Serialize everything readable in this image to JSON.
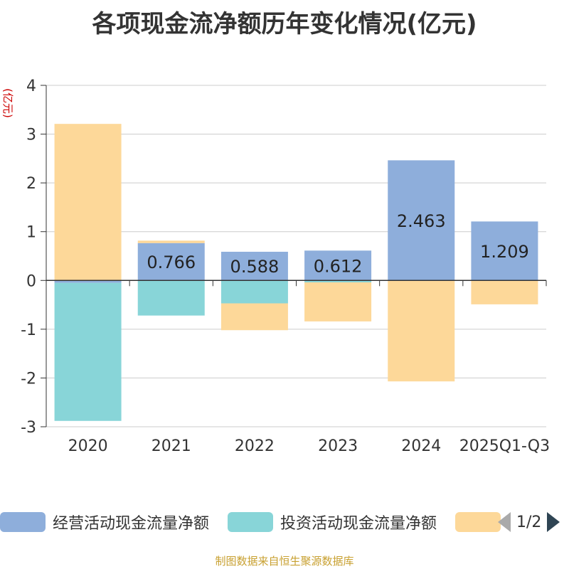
{
  "chart_data": {
    "type": "bar",
    "title": "各项现金流净额历年变化情况(亿元)",
    "ylabel": "(亿元)",
    "ylim": [
      -3,
      4
    ],
    "yticks": [
      -3,
      -2,
      -1,
      0,
      1,
      2,
      3,
      4
    ],
    "categories": [
      "2020",
      "2021",
      "2022",
      "2023",
      "2024",
      "2025Q1-Q3"
    ],
    "series": [
      {
        "name": "经营活动现金流量净额",
        "color": "#8eaedb",
        "values": [
          -0.05,
          0.766,
          0.588,
          0.612,
          2.463,
          1.209
        ],
        "labels": [
          "",
          "0.766",
          "0.588",
          "0.612",
          "2.463",
          "1.209"
        ]
      },
      {
        "name": "投资活动现金流量净额",
        "color": "#88d5d8",
        "values": [
          -2.83,
          -0.72,
          -0.47,
          -0.04,
          0,
          0
        ],
        "labels": [
          "",
          "",
          "",
          "",
          "",
          ""
        ]
      },
      {
        "name": "",
        "color": "#fdd899",
        "values": [
          3.21,
          0.05,
          -0.55,
          -0.8,
          -2.07,
          -0.49
        ],
        "labels": [
          "",
          "",
          "",
          "",
          "",
          ""
        ]
      }
    ]
  },
  "legend": {
    "items": [
      {
        "label": "经营活动现金流量净额",
        "color": "#8eaedb"
      },
      {
        "label": "投资活动现金流量净额",
        "color": "#88d5d8"
      },
      {
        "label": "",
        "color": "#fdd899"
      }
    ],
    "page": "1/2"
  },
  "source": "制图数据来自恒生聚源数据库"
}
